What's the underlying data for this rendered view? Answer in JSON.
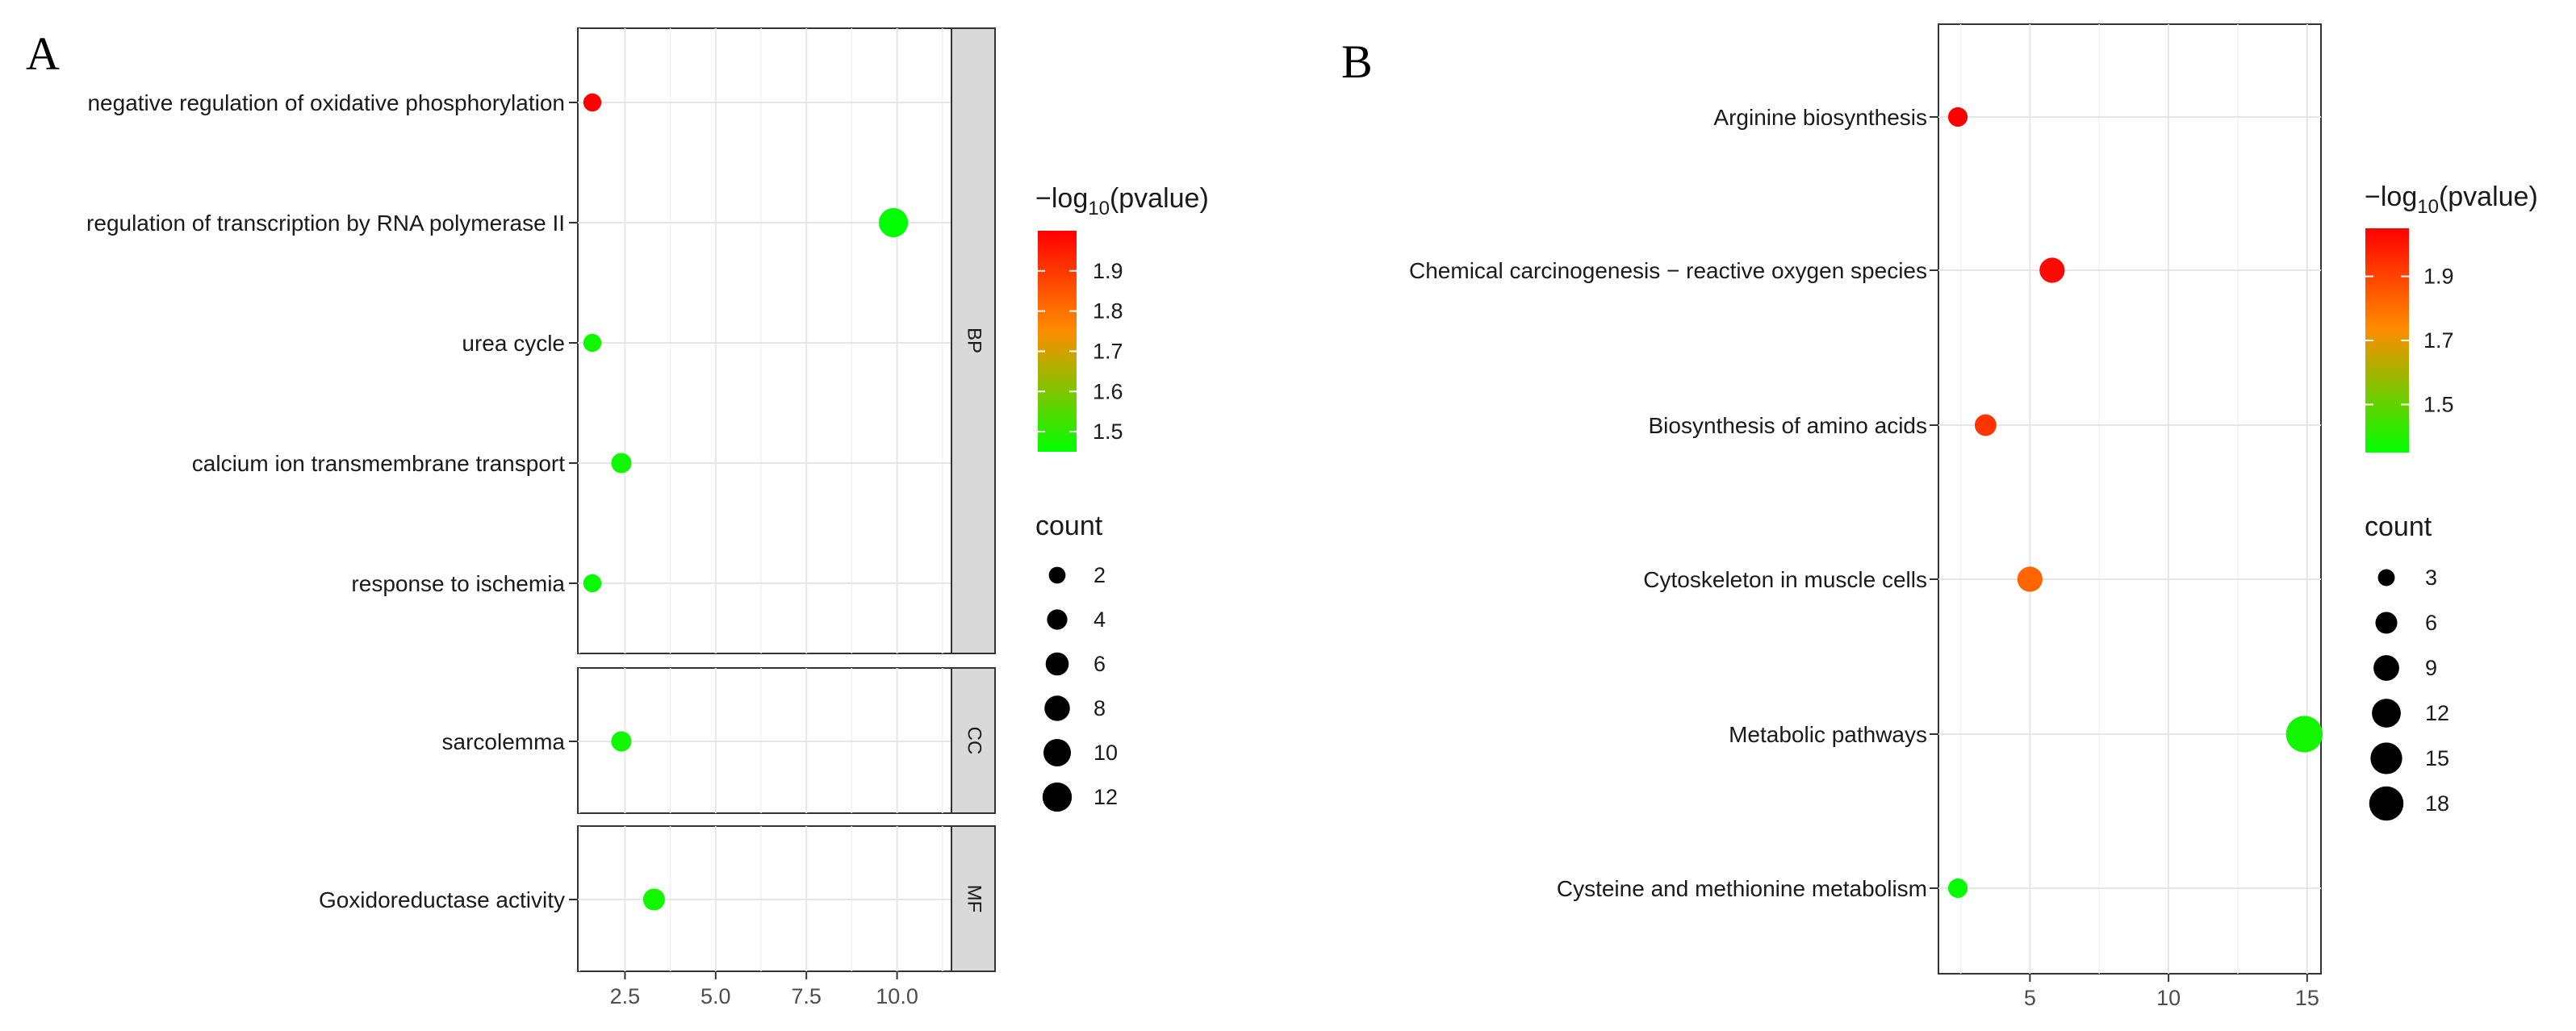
{
  "chart_data": [
    {
      "id": "A",
      "type": "scatter",
      "panel_label": "A",
      "title": "",
      "xlabel": "",
      "ylabel": "",
      "xlim": [
        1.2,
        11.5
      ],
      "x_ticks": [
        2.5,
        5.0,
        7.5,
        10.0
      ],
      "x_tick_labels": [
        "2.5",
        "5.0",
        "7.5",
        "10.0"
      ],
      "grid": true,
      "color_scale": {
        "title_prefix": "−log",
        "title_sub": "10",
        "title_suffix": "(pvalue)",
        "min": 1.45,
        "max": 2.0,
        "ticks": [
          1.5,
          1.6,
          1.7,
          1.8,
          1.9
        ],
        "tick_labels": [
          "1.5",
          "1.6",
          "1.7",
          "1.8",
          "1.9"
        ],
        "low_color": "#00ff00",
        "mid_color": "#ff8c00",
        "high_color": "#ff0000"
      },
      "size_legend": {
        "title": "count",
        "values": [
          2,
          4,
          6,
          8,
          10,
          12
        ],
        "labels": [
          "2",
          "4",
          "6",
          "8",
          "10",
          "12"
        ]
      },
      "facets": [
        {
          "strip": "BP",
          "points": [
            {
              "term": "negative regulation of oxidative phosphorylation",
              "x": 1.6,
              "count": 1,
              "neglog10p": 2.0
            },
            {
              "term": "regulation of transcription by RNA polymerase II",
              "x": 9.9,
              "count": 10,
              "neglog10p": 1.45
            },
            {
              "term": "urea cycle",
              "x": 1.6,
              "count": 1,
              "neglog10p": 1.47
            },
            {
              "term": "calcium ion transmembrane transport",
              "x": 2.4,
              "count": 2,
              "neglog10p": 1.47
            },
            {
              "term": "response to ischemia",
              "x": 1.6,
              "count": 1,
              "neglog10p": 1.46
            }
          ]
        },
        {
          "strip": "CC",
          "points": [
            {
              "term": "sarcolemma",
              "x": 2.4,
              "count": 2,
              "neglog10p": 1.47
            }
          ]
        },
        {
          "strip": "MF",
          "points": [
            {
              "term": "Goxidoreductase activity",
              "x": 3.3,
              "count": 3,
              "neglog10p": 1.47
            }
          ]
        }
      ]
    },
    {
      "id": "B",
      "type": "scatter",
      "panel_label": "B",
      "title": "",
      "xlabel": "",
      "ylabel": "",
      "xlim": [
        1.7,
        15.5
      ],
      "x_ticks": [
        5,
        10,
        15
      ],
      "x_tick_labels": [
        "5",
        "10",
        "15"
      ],
      "grid": true,
      "color_scale": {
        "title_prefix": "−log",
        "title_sub": "10",
        "title_suffix": "(pvalue)",
        "min": 1.35,
        "max": 2.05,
        "ticks": [
          1.5,
          1.7,
          1.9
        ],
        "tick_labels": [
          "1.5",
          "1.7",
          "1.9"
        ],
        "low_color": "#00ff00",
        "mid_color": "#ff8c00",
        "high_color": "#ff0000"
      },
      "size_legend": {
        "title": "count",
        "values": [
          3,
          6,
          9,
          12,
          15,
          18
        ],
        "labels": [
          "3",
          "6",
          "9",
          "12",
          "15",
          "18"
        ]
      },
      "points": [
        {
          "term": "Arginine biosynthesis",
          "x": 2.4,
          "count": 2,
          "neglog10p": 2.05
        },
        {
          "term": "Chemical carcinogenesis − reactive oxygen species",
          "x": 5.8,
          "count": 5,
          "neglog10p": 2.03
        },
        {
          "term": "Biosynthesis of amino acids",
          "x": 3.4,
          "count": 3,
          "neglog10p": 1.93
        },
        {
          "term": "Cytoskeleton in muscle cells",
          "x": 5.0,
          "count": 5,
          "neglog10p": 1.82
        },
        {
          "term": "Metabolic pathways",
          "x": 14.9,
          "count": 15,
          "neglog10p": 1.38
        },
        {
          "term": "Cysteine and methionine metabolism",
          "x": 2.4,
          "count": 2,
          "neglog10p": 1.36
        }
      ]
    }
  ]
}
